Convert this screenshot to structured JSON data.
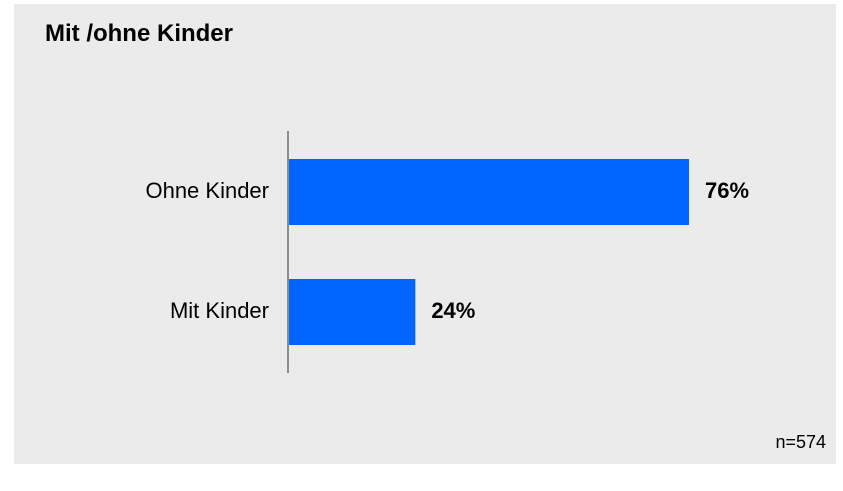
{
  "chart_data": {
    "type": "bar",
    "orientation": "horizontal",
    "title": "Mit /ohne Kinder",
    "categories": [
      "Ohne Kinder",
      "Mit Kinder"
    ],
    "values": [
      76,
      24
    ],
    "data_labels": [
      "76%",
      "24%"
    ],
    "xlim": [
      0,
      100
    ],
    "unit": "%",
    "bar_color": "#0066ff",
    "grid": false,
    "legend": "none"
  },
  "footnote": "n=574"
}
